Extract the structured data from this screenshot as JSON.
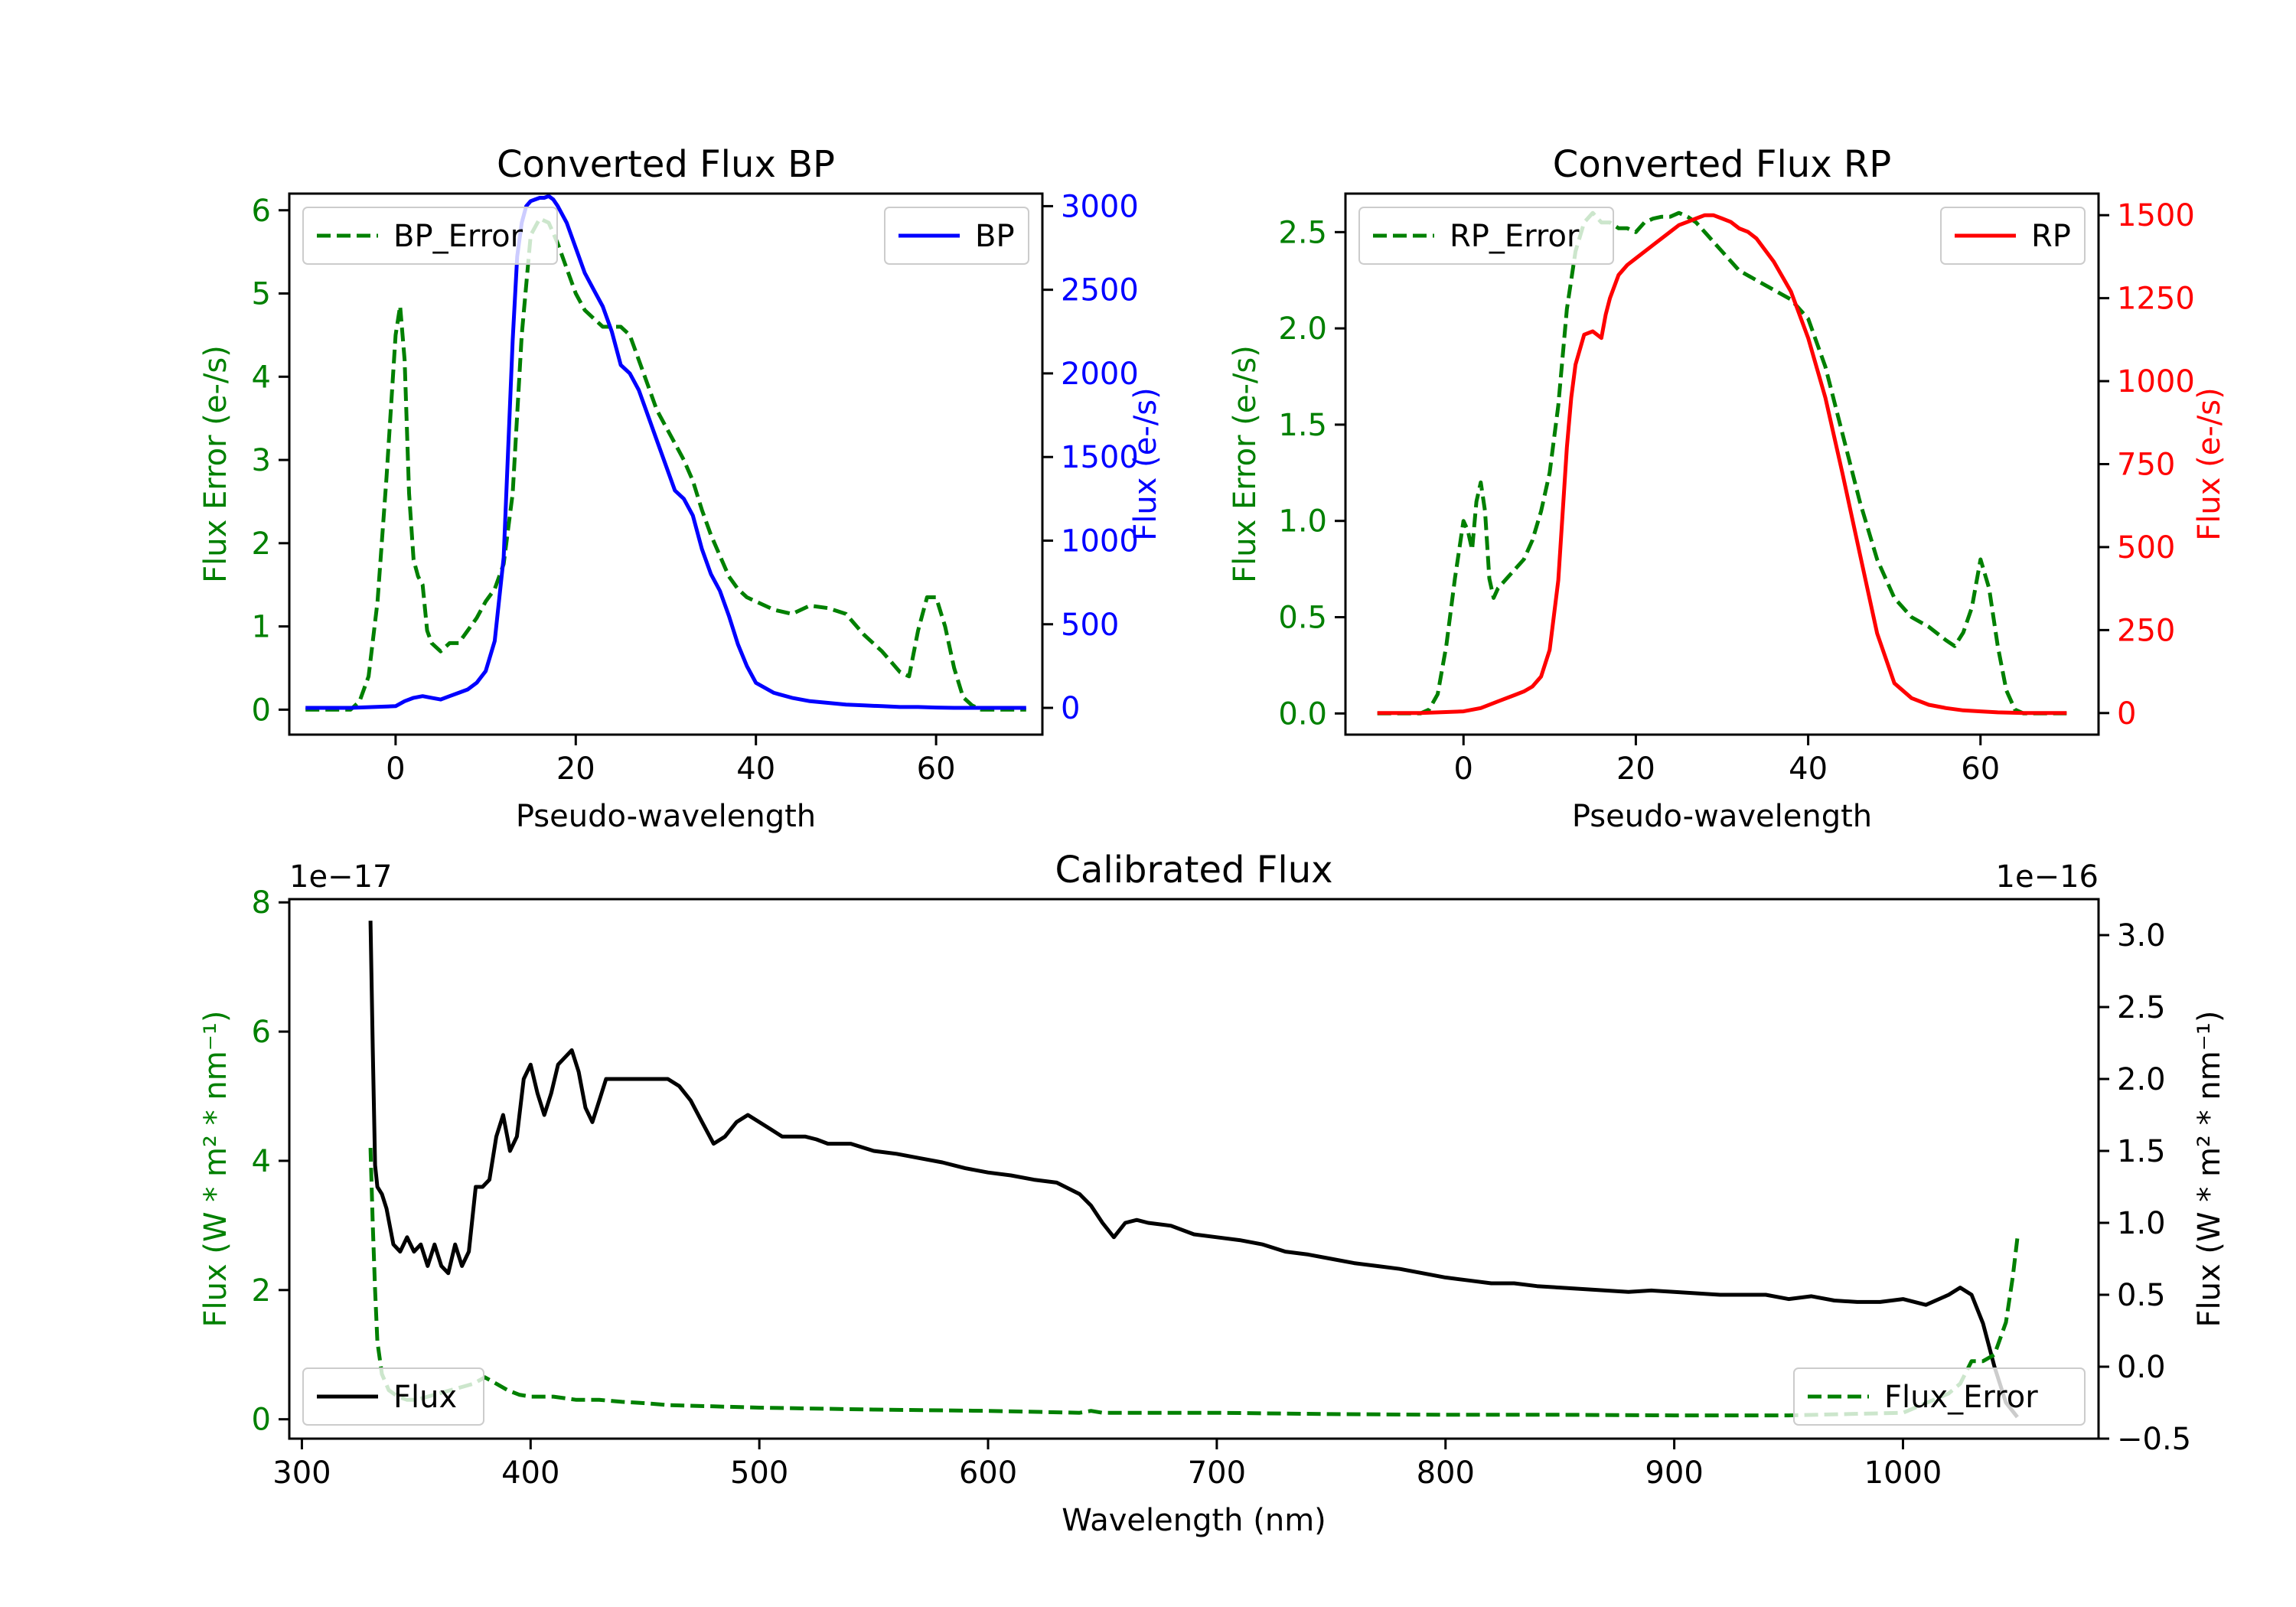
{
  "colors": {
    "green": "#008000",
    "blue": "#0000ff",
    "red": "#ff0000",
    "black": "#000000",
    "axis": "#000000"
  },
  "chart_data": [
    {
      "id": "bp",
      "type": "line",
      "title": "Converted Flux BP",
      "xlabel": "Pseudo-wavelength",
      "ylabel_left": "Flux Error (e-/s)",
      "ylabel_right": "Flux (e-/s)",
      "xlim": [
        -11.8,
        71.8
      ],
      "ylim_left": [
        -0.3,
        6.2
      ],
      "ylim_right": [
        -160,
        3075
      ],
      "xticks": [
        0,
        20,
        40,
        60
      ],
      "xtick_labels": [
        "0",
        "20",
        "40",
        "60"
      ],
      "yticks_left": [
        0,
        1,
        2,
        3,
        4,
        5,
        6
      ],
      "ytick_labels_left": [
        "0",
        "1",
        "2",
        "3",
        "4",
        "5",
        "6"
      ],
      "yticks_right": [
        0,
        500,
        1000,
        1500,
        2000,
        2500,
        3000
      ],
      "ytick_labels_right": [
        "0",
        "500",
        "1000",
        "1500",
        "2000",
        "2500",
        "3000"
      ],
      "legend_left": "BP_Error",
      "legend_right": "BP",
      "series": [
        {
          "name": "BP_Error",
          "axis": "left",
          "style": "dashed",
          "color": "green",
          "x": [
            -10,
            -5,
            -4,
            -3,
            -2,
            -1,
            0,
            0.5,
            1,
            1.5,
            2,
            2.5,
            3,
            3.5,
            4,
            5,
            6,
            7,
            8,
            9,
            10,
            11,
            12,
            13,
            14,
            15,
            16,
            17,
            18,
            19,
            20,
            21,
            22,
            23,
            24,
            25,
            26,
            27,
            28,
            29,
            30,
            31,
            32,
            33,
            34,
            35,
            36,
            37,
            38,
            39,
            40,
            42,
            44,
            46,
            48,
            50,
            52,
            54,
            56,
            57,
            58,
            59,
            60,
            61,
            62,
            63,
            64,
            65,
            70
          ],
          "values": [
            0,
            0,
            0.1,
            0.4,
            1.3,
            2.8,
            4.5,
            4.85,
            4.2,
            2.6,
            1.8,
            1.6,
            1.5,
            0.95,
            0.8,
            0.7,
            0.8,
            0.8,
            0.95,
            1.1,
            1.3,
            1.45,
            1.75,
            2.6,
            4.5,
            5.7,
            5.9,
            5.85,
            5.6,
            5.3,
            5.0,
            4.8,
            4.7,
            4.6,
            4.6,
            4.6,
            4.5,
            4.2,
            3.9,
            3.6,
            3.4,
            3.2,
            3.0,
            2.75,
            2.4,
            2.1,
            1.85,
            1.6,
            1.45,
            1.35,
            1.3,
            1.2,
            1.15,
            1.25,
            1.22,
            1.15,
            0.9,
            0.7,
            0.45,
            0.4,
            0.95,
            1.35,
            1.35,
            1.0,
            0.5,
            0.15,
            0.05,
            0,
            0
          ]
        },
        {
          "name": "BP",
          "axis": "right",
          "style": "solid",
          "color": "blue",
          "x": [
            -10,
            -5,
            0,
            1,
            2,
            3,
            4,
            5,
            6,
            7,
            8,
            9,
            10,
            11,
            12,
            13,
            13.5,
            14,
            14.5,
            15,
            15.5,
            16,
            16.5,
            17,
            17.5,
            18,
            19,
            20,
            21,
            22,
            23,
            24,
            25,
            26,
            27,
            28,
            29,
            30,
            31,
            32,
            33,
            34,
            35,
            36,
            37,
            38,
            39,
            40,
            42,
            44,
            46,
            48,
            50,
            52,
            54,
            56,
            58,
            60,
            62,
            65,
            70
          ],
          "values": [
            0,
            0,
            10,
            40,
            60,
            70,
            60,
            50,
            70,
            90,
            110,
            150,
            220,
            400,
            900,
            2200,
            2700,
            2900,
            3000,
            3030,
            3040,
            3050,
            3050,
            3060,
            3040,
            3000,
            2900,
            2750,
            2600,
            2500,
            2400,
            2250,
            2050,
            2000,
            1900,
            1750,
            1600,
            1450,
            1300,
            1250,
            1150,
            950,
            800,
            700,
            550,
            380,
            250,
            150,
            90,
            60,
            40,
            30,
            20,
            15,
            10,
            5,
            5,
            2,
            0,
            0,
            0
          ]
        }
      ]
    },
    {
      "id": "rp",
      "type": "line",
      "title": "Converted Flux RP",
      "xlabel": "Pseudo-wavelength",
      "ylabel_left": "Flux Error (e-/s)",
      "ylabel_right": "Flux (e-/s)",
      "xlim": [
        -13.7,
        73.7
      ],
      "ylim_left": [
        -0.11,
        2.7
      ],
      "ylim_right": [
        -65,
        1565
      ],
      "xticks": [
        0,
        20,
        40,
        60
      ],
      "xtick_labels": [
        "0",
        "20",
        "40",
        "60"
      ],
      "yticks_left": [
        0,
        0.5,
        1.0,
        1.5,
        2.0,
        2.5
      ],
      "ytick_labels_left": [
        "0.0",
        "0.5",
        "1.0",
        "1.5",
        "2.0",
        "2.5"
      ],
      "yticks_right": [
        0,
        250,
        500,
        750,
        1000,
        1250,
        1500
      ],
      "ytick_labels_right": [
        "0",
        "250",
        "500",
        "750",
        "1000",
        "1250",
        "1500"
      ],
      "legend_left": "RP_Error",
      "legend_right": "RP",
      "series": [
        {
          "name": "RP_Error",
          "axis": "left",
          "style": "dashed",
          "color": "green",
          "x": [
            -10,
            -5,
            -4,
            -3,
            -2,
            -1,
            0,
            0.5,
            1,
            1.5,
            2,
            2.5,
            3,
            3.5,
            4,
            5,
            6,
            7,
            8,
            9,
            10,
            11,
            12,
            13,
            14,
            15,
            16,
            17,
            18,
            19,
            20,
            21,
            22,
            23,
            24,
            25,
            26,
            27,
            28,
            29,
            30,
            32,
            34,
            36,
            38,
            40,
            42,
            44,
            46,
            48,
            50,
            52,
            54,
            56,
            57,
            58,
            59,
            60,
            61,
            62,
            63,
            64,
            65,
            70
          ],
          "values": [
            0,
            0,
            0.02,
            0.1,
            0.35,
            0.7,
            1.0,
            0.95,
            0.85,
            1.1,
            1.2,
            1.05,
            0.7,
            0.6,
            0.65,
            0.7,
            0.75,
            0.8,
            0.9,
            1.05,
            1.25,
            1.6,
            2.1,
            2.4,
            2.55,
            2.6,
            2.55,
            2.55,
            2.52,
            2.52,
            2.5,
            2.55,
            2.57,
            2.58,
            2.58,
            2.6,
            2.58,
            2.55,
            2.5,
            2.45,
            2.4,
            2.3,
            2.25,
            2.2,
            2.15,
            2.05,
            1.8,
            1.45,
            1.1,
            0.8,
            0.6,
            0.5,
            0.45,
            0.38,
            0.35,
            0.42,
            0.55,
            0.8,
            0.65,
            0.35,
            0.12,
            0.02,
            0,
            0
          ]
        },
        {
          "name": "RP",
          "axis": "right",
          "style": "solid",
          "color": "red",
          "x": [
            -10,
            -5,
            0,
            2,
            4,
            6,
            7,
            8,
            9,
            10,
            11,
            12,
            12.5,
            13,
            14,
            15,
            16,
            16.5,
            17,
            18,
            19,
            20,
            22,
            24,
            25,
            26,
            27,
            28,
            29,
            30,
            31,
            32,
            33,
            34,
            36,
            38,
            40,
            42,
            44,
            46,
            48,
            50,
            52,
            54,
            56,
            58,
            60,
            62,
            65,
            70
          ],
          "values": [
            0,
            0,
            5,
            15,
            35,
            55,
            65,
            80,
            110,
            190,
            400,
            800,
            950,
            1050,
            1140,
            1150,
            1130,
            1200,
            1250,
            1320,
            1350,
            1370,
            1410,
            1450,
            1470,
            1480,
            1490,
            1500,
            1500,
            1490,
            1480,
            1460,
            1450,
            1430,
            1360,
            1270,
            1130,
            950,
            720,
            480,
            240,
            90,
            45,
            25,
            15,
            8,
            5,
            2,
            0,
            0
          ]
        }
      ]
    },
    {
      "id": "calibrated",
      "type": "line",
      "title": "Calibrated Flux",
      "xlabel": "Wavelength (nm)",
      "ylabel_left": "Flux (W * m² * nm⁻¹)",
      "ylabel_right": "Flux (W * m² * nm⁻¹)",
      "offset_left": "1e−17",
      "offset_right": "1e−16",
      "xlim": [
        294.5,
        1085.5
      ],
      "ylim_left": [
        -0.3,
        8.05
      ],
      "ylim_right": [
        -0.5,
        3.25
      ],
      "xticks": [
        300,
        400,
        500,
        600,
        700,
        800,
        900,
        1000
      ],
      "xtick_labels": [
        "300",
        "400",
        "500",
        "600",
        "700",
        "800",
        "900",
        "1000"
      ],
      "yticks_left": [
        0,
        2,
        4,
        6,
        8
      ],
      "ytick_labels_left": [
        "0",
        "2",
        "4",
        "6",
        "8"
      ],
      "yticks_right": [
        -0.5,
        0.0,
        0.5,
        1.0,
        1.5,
        2.0,
        2.5,
        3.0
      ],
      "ytick_labels_right": [
        "−0.5",
        "0.0",
        "0.5",
        "1.0",
        "1.5",
        "2.0",
        "2.5",
        "3.0"
      ],
      "legend_left": "Flux",
      "legend_right": "Flux_Error",
      "series": [
        {
          "name": "Flux",
          "axis": "right",
          "style": "solid",
          "color": "black",
          "x": [
            330,
            331,
            332,
            333,
            335,
            337,
            340,
            343,
            346,
            349,
            352,
            355,
            358,
            361,
            364,
            367,
            370,
            373,
            376,
            379,
            382,
            385,
            388,
            391,
            394,
            397,
            400,
            403,
            406,
            409,
            412,
            415,
            418,
            421,
            424,
            427,
            430,
            433,
            436,
            440,
            445,
            450,
            455,
            460,
            465,
            470,
            475,
            480,
            485,
            490,
            495,
            500,
            505,
            510,
            515,
            520,
            525,
            530,
            540,
            550,
            560,
            570,
            580,
            590,
            600,
            610,
            620,
            630,
            640,
            645,
            650,
            655,
            660,
            665,
            670,
            680,
            690,
            700,
            710,
            720,
            730,
            740,
            750,
            760,
            770,
            780,
            790,
            800,
            810,
            820,
            830,
            840,
            850,
            860,
            870,
            880,
            890,
            900,
            910,
            920,
            930,
            940,
            950,
            960,
            970,
            980,
            990,
            1000,
            1010,
            1020,
            1025,
            1030,
            1035,
            1040,
            1045,
            1050
          ],
          "values": [
            3.1,
            2.2,
            1.4,
            1.25,
            1.2,
            1.1,
            0.85,
            0.8,
            0.9,
            0.8,
            0.85,
            0.7,
            0.85,
            0.7,
            0.65,
            0.85,
            0.7,
            0.8,
            1.25,
            1.25,
            1.3,
            1.6,
            1.75,
            1.5,
            1.6,
            2.0,
            2.1,
            1.9,
            1.75,
            1.9,
            2.1,
            2.15,
            2.2,
            2.05,
            1.8,
            1.7,
            1.85,
            2.0,
            2.0,
            2.0,
            2.0,
            2.0,
            2.0,
            2.0,
            1.95,
            1.85,
            1.7,
            1.55,
            1.6,
            1.7,
            1.75,
            1.7,
            1.65,
            1.6,
            1.6,
            1.6,
            1.58,
            1.55,
            1.55,
            1.5,
            1.48,
            1.45,
            1.42,
            1.38,
            1.35,
            1.33,
            1.3,
            1.28,
            1.2,
            1.12,
            1.0,
            0.9,
            1.0,
            1.02,
            1.0,
            0.98,
            0.92,
            0.9,
            0.88,
            0.85,
            0.8,
            0.78,
            0.75,
            0.72,
            0.7,
            0.68,
            0.65,
            0.62,
            0.6,
            0.58,
            0.58,
            0.56,
            0.55,
            0.54,
            0.53,
            0.52,
            0.53,
            0.52,
            0.51,
            0.5,
            0.5,
            0.5,
            0.47,
            0.49,
            0.46,
            0.45,
            0.45,
            0.47,
            0.43,
            0.5,
            0.55,
            0.5,
            0.3,
            0.0,
            -0.25,
            -0.35
          ]
        },
        {
          "name": "Flux_Error",
          "axis": "left",
          "style": "dashed",
          "color": "green",
          "x": [
            330,
            331,
            332,
            333,
            335,
            338,
            342,
            346,
            350,
            355,
            360,
            365,
            370,
            375,
            380,
            385,
            390,
            395,
            400,
            410,
            420,
            430,
            440,
            450,
            460,
            480,
            500,
            550,
            600,
            640,
            645,
            650,
            700,
            750,
            800,
            850,
            900,
            950,
            1000,
            1010,
            1020,
            1025,
            1030,
            1035,
            1040,
            1045,
            1048,
            1050
          ],
          "values": [
            4.2,
            3.0,
            2.0,
            1.2,
            0.7,
            0.45,
            0.35,
            0.3,
            0.3,
            0.35,
            0.4,
            0.45,
            0.5,
            0.55,
            0.65,
            0.55,
            0.45,
            0.38,
            0.35,
            0.35,
            0.3,
            0.3,
            0.27,
            0.25,
            0.22,
            0.2,
            0.18,
            0.15,
            0.13,
            0.1,
            0.13,
            0.1,
            0.1,
            0.08,
            0.07,
            0.07,
            0.06,
            0.06,
            0.1,
            0.25,
            0.4,
            0.55,
            0.9,
            0.9,
            1.0,
            1.5,
            2.2,
            2.8
          ]
        }
      ]
    }
  ]
}
